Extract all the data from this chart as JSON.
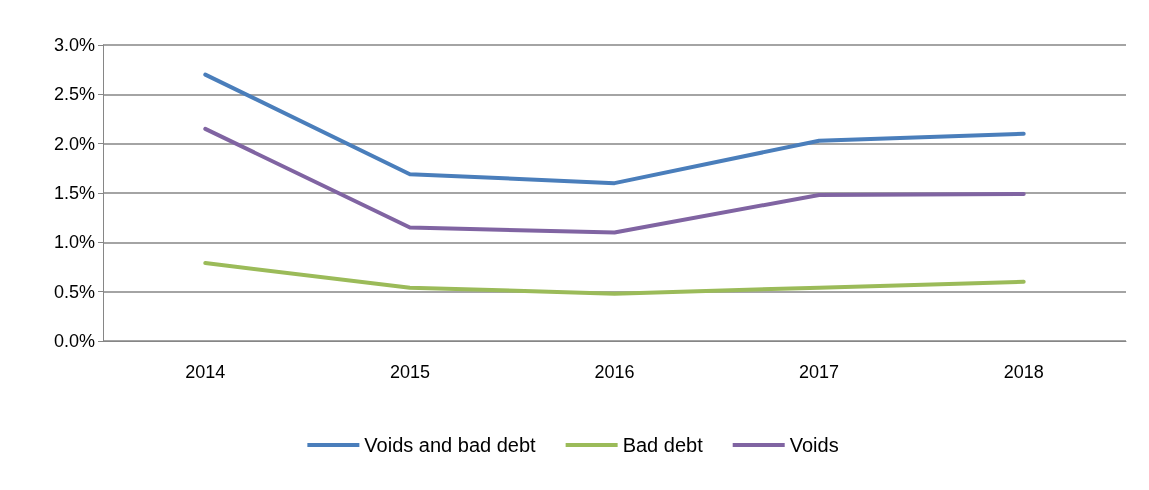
{
  "chart_data": {
    "type": "line",
    "categories": [
      "2014",
      "2015",
      "2016",
      "2017",
      "2018"
    ],
    "series": [
      {
        "name": "Voids and bad debt",
        "color": "#4a7ebb",
        "values": [
          2.7,
          1.69,
          1.6,
          2.03,
          2.1
        ]
      },
      {
        "name": "Bad debt",
        "color": "#9bbb59",
        "values": [
          0.79,
          0.54,
          0.48,
          0.54,
          0.6
        ]
      },
      {
        "name": "Voids",
        "color": "#8064a2",
        "values": [
          2.15,
          1.15,
          1.1,
          1.48,
          1.49
        ]
      }
    ],
    "ylim": [
      0,
      3
    ],
    "yticks": [
      {
        "value": 0,
        "label": "0.0%"
      },
      {
        "value": 0.5,
        "label": "0.5%"
      },
      {
        "value": 1,
        "label": "1.0%"
      },
      {
        "value": 1.5,
        "label": "1.5%"
      },
      {
        "value": 2,
        "label": "2.0%"
      },
      {
        "value": 2.5,
        "label": "2.5%"
      },
      {
        "value": 3,
        "label": "3.0%"
      }
    ],
    "grid": "y",
    "legend": "bottom",
    "marker": "none",
    "line_style": "solid"
  }
}
